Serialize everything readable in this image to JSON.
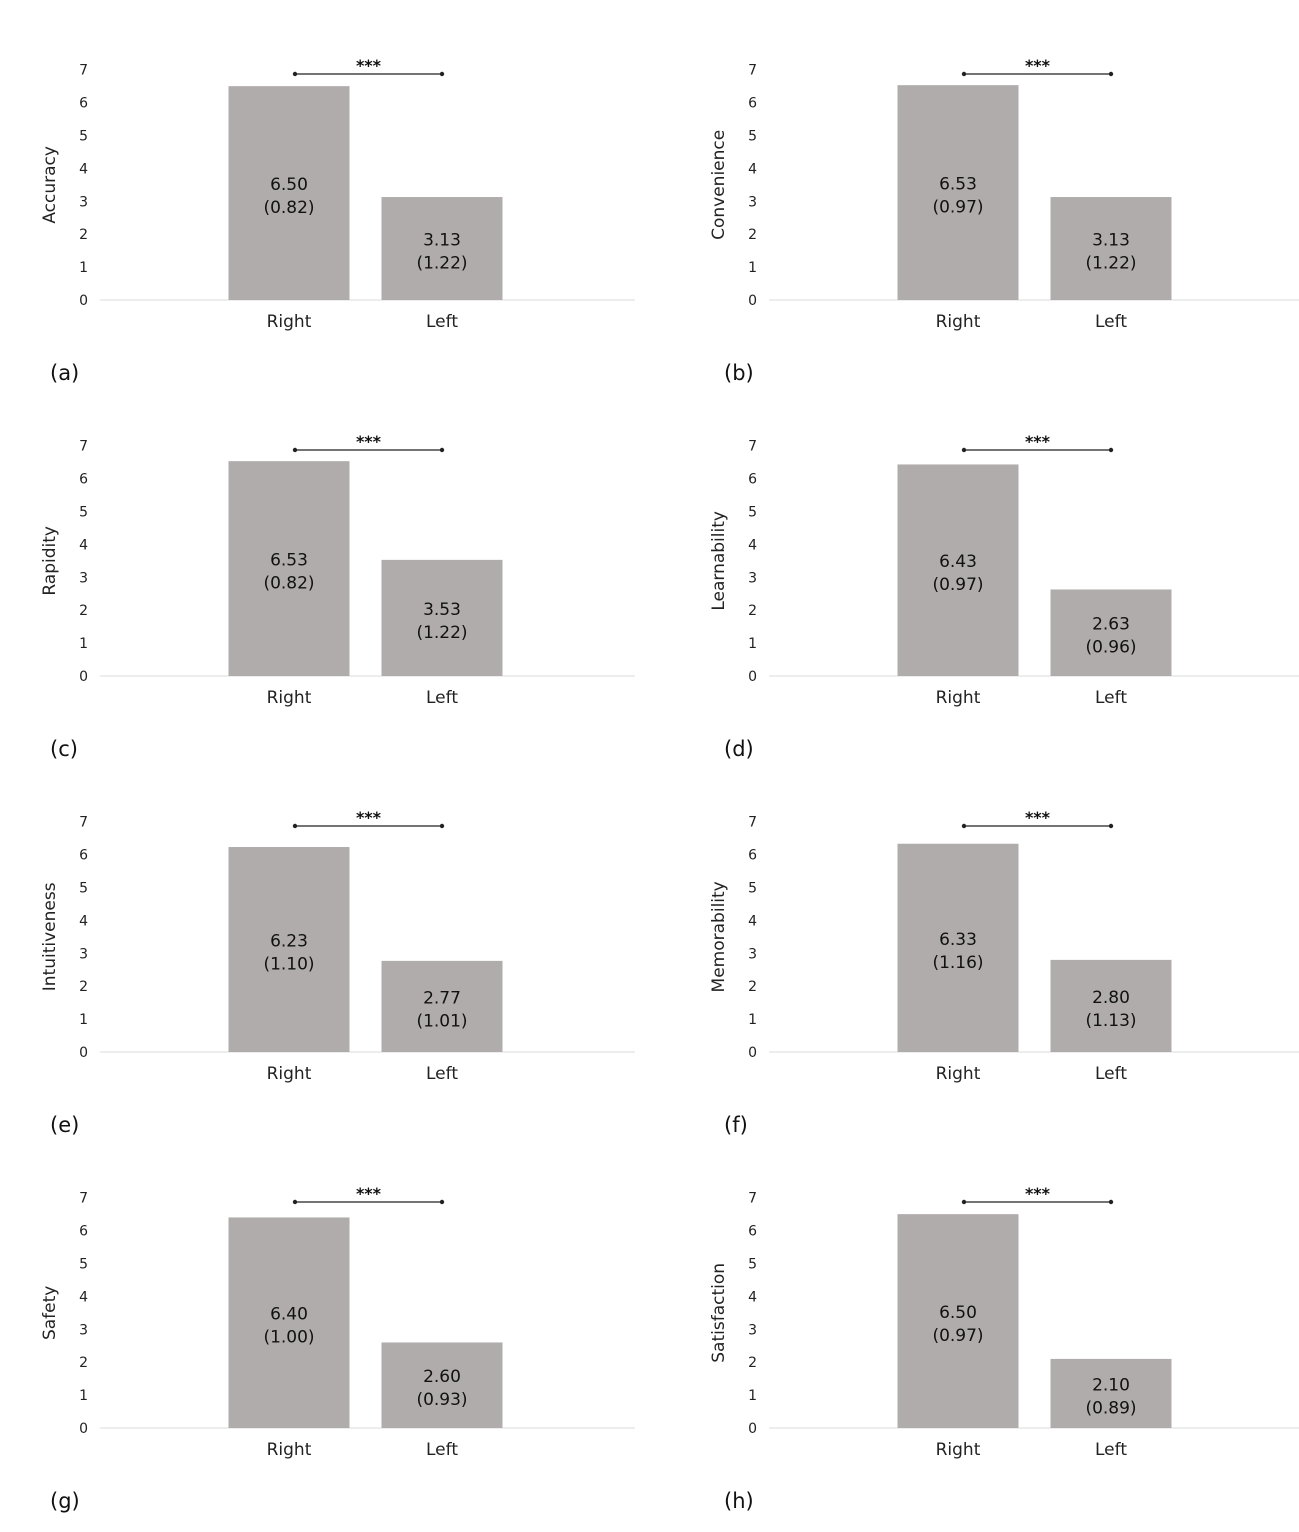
{
  "chart_data": [
    {
      "panel_label": "(a)",
      "type": "bar",
      "ylabel": "Accuracy",
      "categories": [
        "Right",
        "Left"
      ],
      "values": [
        6.5,
        3.13
      ],
      "data_labels": [
        [
          "6.50",
          "(0.82)"
        ],
        [
          "3.13",
          "(1.22)"
        ]
      ],
      "yticks": [
        0,
        1,
        2,
        3,
        4,
        5,
        6,
        7
      ],
      "ylim": [
        0,
        7
      ],
      "significance": "***",
      "colors": {
        "bar": "#b0acab"
      }
    },
    {
      "panel_label": "(b)",
      "type": "bar",
      "ylabel": "Convenience",
      "categories": [
        "Right",
        "Left"
      ],
      "values": [
        6.53,
        3.13
      ],
      "data_labels": [
        [
          "6.53",
          "(0.97)"
        ],
        [
          "3.13",
          "(1.22)"
        ]
      ],
      "yticks": [
        0,
        1,
        2,
        3,
        4,
        5,
        6,
        7
      ],
      "ylim": [
        0,
        7
      ],
      "significance": "***",
      "colors": {
        "bar": "#b0acab"
      }
    },
    {
      "panel_label": "(c)",
      "type": "bar",
      "ylabel": "Rapidity",
      "categories": [
        "Right",
        "Left"
      ],
      "values": [
        6.53,
        3.53
      ],
      "data_labels": [
        [
          "6.53",
          "(0.82)"
        ],
        [
          "3.53",
          "(1.22)"
        ]
      ],
      "yticks": [
        0,
        1,
        2,
        3,
        4,
        5,
        6,
        7
      ],
      "ylim": [
        0,
        7
      ],
      "significance": "***",
      "colors": {
        "bar": "#b0acab"
      }
    },
    {
      "panel_label": "(d)",
      "type": "bar",
      "ylabel": "Learnability",
      "categories": [
        "Right",
        "Left"
      ],
      "values": [
        6.43,
        2.63
      ],
      "data_labels": [
        [
          "6.43",
          "(0.97)"
        ],
        [
          "2.63",
          "(0.96)"
        ]
      ],
      "yticks": [
        0,
        1,
        2,
        3,
        4,
        5,
        6,
        7
      ],
      "ylim": [
        0,
        7
      ],
      "significance": "***",
      "colors": {
        "bar": "#b0acab"
      }
    },
    {
      "panel_label": "(e)",
      "type": "bar",
      "ylabel": "Intuitiveness",
      "categories": [
        "Right",
        "Left"
      ],
      "values": [
        6.23,
        2.77
      ],
      "data_labels": [
        [
          "6.23",
          "(1.10)"
        ],
        [
          "2.77",
          "(1.01)"
        ]
      ],
      "yticks": [
        0,
        1,
        2,
        3,
        4,
        5,
        6,
        7
      ],
      "ylim": [
        0,
        7
      ],
      "significance": "***",
      "colors": {
        "bar": "#b0acab"
      }
    },
    {
      "panel_label": "(f)",
      "type": "bar",
      "ylabel": "Memorability",
      "categories": [
        "Right",
        "Left"
      ],
      "values": [
        6.33,
        2.8
      ],
      "data_labels": [
        [
          "6.33",
          "(1.16)"
        ],
        [
          "2.80",
          "(1.13)"
        ]
      ],
      "yticks": [
        0,
        1,
        2,
        3,
        4,
        5,
        6,
        7
      ],
      "ylim": [
        0,
        7
      ],
      "significance": "***",
      "colors": {
        "bar": "#b0acab"
      }
    },
    {
      "panel_label": "(g)",
      "type": "bar",
      "ylabel": "Safety",
      "categories": [
        "Right",
        "Left"
      ],
      "values": [
        6.4,
        2.6
      ],
      "data_labels": [
        [
          "6.40",
          "(1.00)"
        ],
        [
          "2.60",
          "(0.93)"
        ]
      ],
      "yticks": [
        0,
        1,
        2,
        3,
        4,
        5,
        6,
        7
      ],
      "ylim": [
        0,
        7
      ],
      "significance": "***",
      "colors": {
        "bar": "#b0acab"
      }
    },
    {
      "panel_label": "(h)",
      "type": "bar",
      "ylabel": "Satisfaction",
      "categories": [
        "Right",
        "Left"
      ],
      "values": [
        6.5,
        2.1
      ],
      "data_labels": [
        [
          "6.50",
          "(0.97)"
        ],
        [
          "2.10",
          "(0.89)"
        ]
      ],
      "yticks": [
        0,
        1,
        2,
        3,
        4,
        5,
        6,
        7
      ],
      "ylim": [
        0,
        7
      ],
      "significance": "***",
      "colors": {
        "bar": "#b0acab"
      }
    }
  ]
}
